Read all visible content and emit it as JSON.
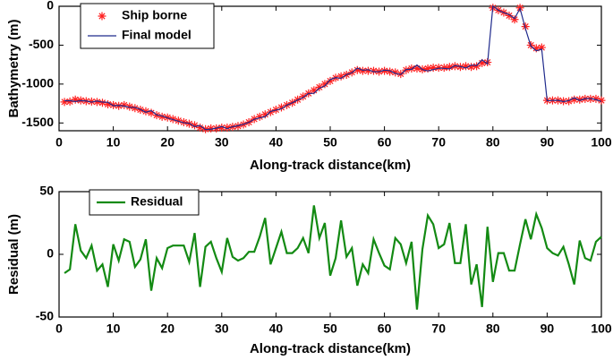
{
  "chart_data": [
    {
      "type": "line",
      "xlabel": "Along-track distance(km)",
      "ylabel": "Bathymetry (m)",
      "x": [
        1,
        2,
        3,
        4,
        5,
        6,
        7,
        8,
        9,
        10,
        11,
        12,
        13,
        14,
        15,
        16,
        17,
        18,
        19,
        20,
        21,
        22,
        23,
        24,
        25,
        26,
        27,
        28,
        29,
        30,
        31,
        32,
        33,
        34,
        35,
        36,
        37,
        38,
        39,
        40,
        41,
        42,
        43,
        44,
        45,
        46,
        47,
        48,
        49,
        50,
        51,
        52,
        53,
        54,
        55,
        56,
        57,
        58,
        59,
        60,
        61,
        62,
        63,
        64,
        65,
        66,
        67,
        68,
        69,
        70,
        71,
        72,
        73,
        74,
        75,
        76,
        77,
        78,
        79,
        80,
        81,
        82,
        83,
        84,
        85,
        86,
        87,
        88,
        89,
        90,
        91,
        92,
        93,
        94,
        95,
        96,
        97,
        98,
        99,
        100
      ],
      "series": [
        {
          "name": "Ship borne",
          "color": "#ff2020",
          "marker": "*",
          "values": [
            -1230,
            -1225,
            -1200,
            -1210,
            -1220,
            -1225,
            -1230,
            -1240,
            -1260,
            -1270,
            -1280,
            -1270,
            -1290,
            -1310,
            -1330,
            -1350,
            -1370,
            -1400,
            -1420,
            -1430,
            -1450,
            -1470,
            -1490,
            -1510,
            -1530,
            -1560,
            -1580,
            -1570,
            -1570,
            -1560,
            -1560,
            -1550,
            -1540,
            -1520,
            -1490,
            -1450,
            -1420,
            -1390,
            -1360,
            -1330,
            -1300,
            -1270,
            -1240,
            -1200,
            -1160,
            -1120,
            -1080,
            -1040,
            -1000,
            -960,
            -920,
            -900,
            -880,
            -850,
            -820,
            -830,
            -830,
            -830,
            -840,
            -830,
            -840,
            -850,
            -870,
            -820,
            -800,
            -800,
            -810,
            -800,
            -790,
            -790,
            -790,
            -780,
            -770,
            -780,
            -770,
            -780,
            -770,
            -730,
            -720,
            -20,
            -50,
            -80,
            -120,
            -170,
            -20,
            -260,
            -500,
            -540,
            -530,
            -1210,
            -1210,
            -1210,
            -1220,
            -1220,
            -1200,
            -1200,
            -1190,
            -1190,
            -1190,
            -1210
          ]
        },
        {
          "name": "Final model",
          "color": "#1f2a8c",
          "marker": "none",
          "values": [
            -1215,
            -1213,
            -1224,
            -1213,
            -1217,
            -1232,
            -1217,
            -1232,
            -1234,
            -1278,
            -1275,
            -1282,
            -1300,
            -1300,
            -1326,
            -1362,
            -1341,
            -1397,
            -1409,
            -1435,
            -1457,
            -1477,
            -1497,
            -1504,
            -1547,
            -1534,
            -1586,
            -1580,
            -1567,
            -1546,
            -1573,
            -1548,
            -1535,
            -1517,
            -1492,
            -1452,
            -1434,
            -1419,
            -1352,
            -1335,
            -1318,
            -1271,
            -1241,
            -1205,
            -1173,
            -1121,
            -1119,
            -1053,
            -1025,
            -943,
            -917,
            -927,
            -878,
            -855,
            -795,
            -822,
            -815,
            -842,
            -841,
            -821,
            -828,
            -863,
            -878,
            -813,
            -810,
            -756,
            -814,
            -831,
            -814,
            -795,
            -798,
            -805,
            -763,
            -773,
            -794,
            -756,
            -762,
            -688,
            -742,
            2,
            -51,
            -81,
            -107,
            -157,
            -28,
            -288,
            -512,
            -572,
            -551,
            -1215,
            -1211,
            -1209,
            -1226,
            -1212,
            -1176,
            -1211,
            -1187,
            -1185,
            -1200,
            -1224
          ]
        }
      ],
      "xlim": [
        0,
        100
      ],
      "xticks": [
        0,
        10,
        20,
        30,
        40,
        50,
        60,
        70,
        80,
        90,
        100
      ],
      "ylim": [
        -1600,
        0
      ],
      "yticks": [
        -1500,
        -1000,
        -500,
        0
      ],
      "legend": "upper left"
    },
    {
      "type": "line",
      "xlabel": "Along-track distance(km)",
      "ylabel": "Residual (m)",
      "x": [
        1,
        2,
        3,
        4,
        5,
        6,
        7,
        8,
        9,
        10,
        11,
        12,
        13,
        14,
        15,
        16,
        17,
        18,
        19,
        20,
        21,
        22,
        23,
        24,
        25,
        26,
        27,
        28,
        29,
        30,
        31,
        32,
        33,
        34,
        35,
        36,
        37,
        38,
        39,
        40,
        41,
        42,
        43,
        44,
        45,
        46,
        47,
        48,
        49,
        50,
        51,
        52,
        53,
        54,
        55,
        56,
        57,
        58,
        59,
        60,
        61,
        62,
        63,
        64,
        65,
        66,
        67,
        68,
        69,
        70,
        71,
        72,
        73,
        74,
        75,
        76,
        77,
        78,
        79,
        80,
        81,
        82,
        83,
        84,
        85,
        86,
        87,
        88,
        89,
        90,
        91,
        92,
        93,
        94,
        95,
        96,
        97,
        98,
        99,
        100
      ],
      "series": [
        {
          "name": "Residual",
          "color": "#138a13",
          "marker": "none",
          "values": [
            -15,
            -12,
            24,
            3,
            -3,
            7,
            -13,
            -8,
            -26,
            8,
            -5,
            12,
            10,
            -10,
            -4,
            12,
            -29,
            -3,
            -11,
            5,
            7,
            7,
            7,
            -6,
            17,
            -26,
            6,
            10,
            -3,
            -14,
            13,
            -2,
            -5,
            -3,
            2,
            2,
            14,
            29,
            -8,
            5,
            18,
            1,
            1,
            5,
            13,
            1,
            39,
            13,
            25,
            -17,
            -3,
            27,
            -2,
            5,
            -25,
            -8,
            -15,
            12,
            1,
            -9,
            -12,
            13,
            8,
            -7,
            10,
            -44,
            4,
            31,
            24,
            5,
            8,
            25,
            -7,
            -7,
            24,
            -24,
            -8,
            -42,
            22,
            -22,
            1,
            1,
            -13,
            -13,
            8,
            28,
            12,
            32,
            21,
            5,
            1,
            -1,
            6,
            -8,
            -24,
            11,
            -3,
            -5,
            10,
            14
          ]
        }
      ],
      "xlim": [
        0,
        100
      ],
      "xticks": [
        0,
        10,
        20,
        30,
        40,
        50,
        60,
        70,
        80,
        90,
        100
      ],
      "ylim": [
        -50,
        50
      ],
      "yticks": [
        -50,
        0,
        50
      ],
      "legend": "upper left"
    }
  ]
}
